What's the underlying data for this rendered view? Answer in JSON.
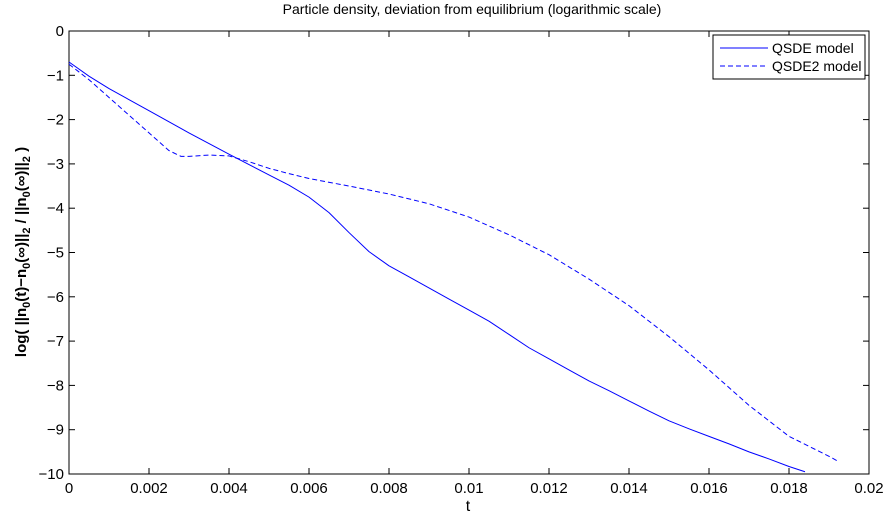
{
  "chart_data": {
    "type": "line",
    "title": "Particle density, deviation from equilibrium (logarithmic scale)",
    "xlabel": "t",
    "ylabel": "log( ||n0(t)−n0(∞)||2 / ||n0(∞)||2 )",
    "xlim": [
      0,
      0.02
    ],
    "ylim": [
      -10,
      0
    ],
    "xticks": [
      0,
      0.002,
      0.004,
      0.006,
      0.008,
      0.01,
      0.012,
      0.014,
      0.016,
      0.018,
      0.02
    ],
    "xtick_labels": [
      "0",
      "0.002",
      "0.004",
      "0.006",
      "0.008",
      "0.01",
      "0.012",
      "0.014",
      "0.016",
      "0.018",
      "0.02"
    ],
    "yticks": [
      0,
      -1,
      -2,
      -3,
      -4,
      -5,
      -6,
      -7,
      -8,
      -9,
      -10
    ],
    "ytick_labels": [
      "0",
      "−1",
      "−2",
      "−3",
      "−4",
      "−5",
      "−6",
      "−7",
      "−8",
      "−9",
      "−10"
    ],
    "grid": false,
    "legend_position": "top-right",
    "series": [
      {
        "name": "QSDE model",
        "color": "#0000ff",
        "line_style": "solid",
        "x": [
          0,
          0.0005,
          0.001,
          0.002,
          0.003,
          0.004,
          0.005,
          0.0055,
          0.006,
          0.0065,
          0.007,
          0.0075,
          0.008,
          0.0085,
          0.009,
          0.0095,
          0.01,
          0.0105,
          0.011,
          0.0115,
          0.012,
          0.0125,
          0.013,
          0.0135,
          0.014,
          0.0145,
          0.015,
          0.0155,
          0.016,
          0.0165,
          0.017,
          0.0175,
          0.018,
          0.0184
        ],
        "y": [
          -0.7,
          -1.02,
          -1.3,
          -1.8,
          -2.3,
          -2.78,
          -3.25,
          -3.48,
          -3.75,
          -4.1,
          -4.55,
          -4.98,
          -5.3,
          -5.55,
          -5.8,
          -6.05,
          -6.3,
          -6.55,
          -6.85,
          -7.15,
          -7.4,
          -7.65,
          -7.9,
          -8.12,
          -8.35,
          -8.58,
          -8.8,
          -8.98,
          -9.15,
          -9.32,
          -9.5,
          -9.66,
          -9.83,
          -9.95
        ]
      },
      {
        "name": "QSDE2 model",
        "color": "#0000ff",
        "line_style": "dashed",
        "x": [
          0,
          0.0005,
          0.001,
          0.0015,
          0.002,
          0.0025,
          0.0028,
          0.003,
          0.0035,
          0.004,
          0.0045,
          0.005,
          0.0055,
          0.006,
          0.007,
          0.008,
          0.009,
          0.01,
          0.011,
          0.012,
          0.013,
          0.014,
          0.015,
          0.016,
          0.017,
          0.018,
          0.019,
          0.0192
        ],
        "y": [
          -0.75,
          -1.1,
          -1.5,
          -1.9,
          -2.3,
          -2.7,
          -2.83,
          -2.83,
          -2.8,
          -2.82,
          -2.95,
          -3.1,
          -3.22,
          -3.33,
          -3.5,
          -3.68,
          -3.9,
          -4.2,
          -4.6,
          -5.05,
          -5.6,
          -6.2,
          -6.9,
          -7.65,
          -8.45,
          -9.15,
          -9.6,
          -9.7
        ]
      }
    ]
  }
}
